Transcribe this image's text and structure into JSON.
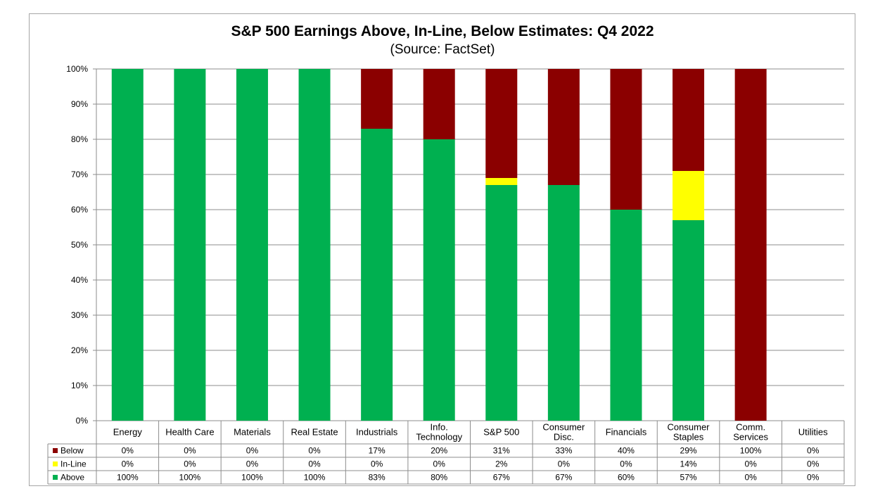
{
  "chart_data": {
    "type": "bar",
    "stacked": true,
    "title": "S&P 500 Earnings Above, In-Line, Below Estimates: Q4 2022",
    "subtitle": "(Source: FactSet)",
    "categories": [
      [
        "Energy"
      ],
      [
        "Health Care"
      ],
      [
        "Materials"
      ],
      [
        "Real Estate"
      ],
      [
        "Industrials"
      ],
      [
        "Info.",
        "Technology"
      ],
      [
        "S&P 500"
      ],
      [
        "Consumer",
        "Disc."
      ],
      [
        "Financials"
      ],
      [
        "Consumer",
        "Staples"
      ],
      [
        "Comm.",
        "Services"
      ],
      [
        "Utilities"
      ]
    ],
    "series": [
      {
        "name": "Below",
        "color": "#8b0000",
        "values": [
          0,
          0,
          0,
          0,
          17,
          20,
          31,
          33,
          40,
          29,
          100,
          0
        ]
      },
      {
        "name": "In-Line",
        "color": "#ffff00",
        "values": [
          0,
          0,
          0,
          0,
          0,
          0,
          2,
          0,
          0,
          14,
          0,
          0
        ]
      },
      {
        "name": "Above",
        "color": "#00b050",
        "values": [
          100,
          100,
          100,
          100,
          83,
          80,
          67,
          67,
          60,
          57,
          0,
          0
        ]
      }
    ],
    "stack_order_bottom_to_top": [
      "Above",
      "In-Line",
      "Below"
    ],
    "yticks": [
      "0%",
      "10%",
      "20%",
      "30%",
      "40%",
      "50%",
      "60%",
      "70%",
      "80%",
      "90%",
      "100%"
    ],
    "ylim": [
      0,
      100
    ],
    "y_unit": "%",
    "grid": true,
    "data_table": true
  }
}
